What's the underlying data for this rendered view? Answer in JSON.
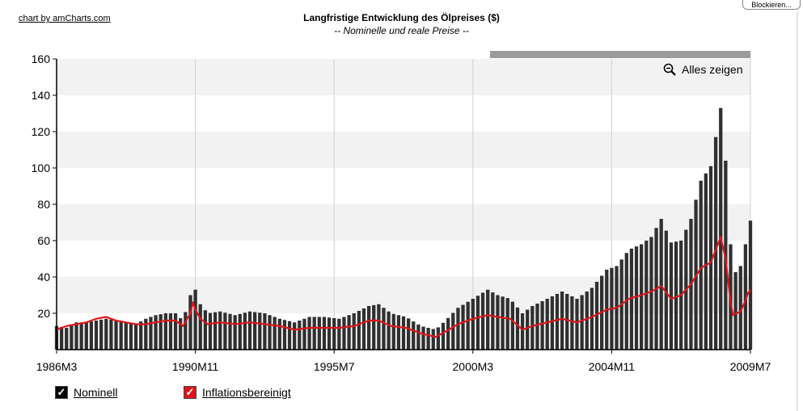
{
  "credit": "chart by amCharts.com",
  "block_button": "Blockieren...",
  "zoom_label": "Alles zeigen",
  "colors": {
    "nominal": "#303030",
    "real": "#e0141a",
    "band": "#f2f2f2",
    "scrollbar": "#9b9b9b"
  },
  "icons": {
    "zoom": "zoom-out-magnifier-icon",
    "check": "checkmark-icon"
  },
  "chart_data": {
    "type": "bar",
    "title": "Langfristige Entwicklung des Ölpreises ($)",
    "subtitle": "-- Nominelle und reale Preise --",
    "xlabel": "",
    "ylabel": "",
    "ylim": [
      0,
      160
    ],
    "yticks": [
      20,
      40,
      60,
      80,
      100,
      120,
      140,
      160
    ],
    "x_tick_labels": [
      "1986M3",
      "1990M11",
      "1995M7",
      "2000M3",
      "2004M11",
      "2009M7"
    ],
    "x_start": "1986M3",
    "x_end": "2009M7",
    "grid": true,
    "legend_position": "bottom-left",
    "series": [
      {
        "name": "Nominell",
        "render": "bar",
        "points": [
          [
            "1986M3",
            13
          ],
          [
            "1986M7",
            12
          ],
          [
            "1986M11",
            15
          ],
          [
            "1987M3",
            15
          ],
          [
            "1987M7",
            16
          ],
          [
            "1987M11",
            17
          ],
          [
            "1988M3",
            16
          ],
          [
            "1988M7",
            15
          ],
          [
            "1988M11",
            14
          ],
          [
            "1989M3",
            17
          ],
          [
            "1989M7",
            19
          ],
          [
            "1989M11",
            20
          ],
          [
            "1990M3",
            20
          ],
          [
            "1990M6",
            16
          ],
          [
            "1990M9",
            30
          ],
          [
            "1990M10",
            36
          ],
          [
            "1990M11",
            33
          ],
          [
            "1991M1",
            25
          ],
          [
            "1991M4",
            20
          ],
          [
            "1991M9",
            21
          ],
          [
            "1992M3",
            19
          ],
          [
            "1992M9",
            21
          ],
          [
            "1993M3",
            20
          ],
          [
            "1993M9",
            17
          ],
          [
            "1994M3",
            15
          ],
          [
            "1994M9",
            18
          ],
          [
            "1995M3",
            18
          ],
          [
            "1995M9",
            17
          ],
          [
            "1996M3",
            20
          ],
          [
            "1996M9",
            24
          ],
          [
            "1997M1",
            25
          ],
          [
            "1997M6",
            20
          ],
          [
            "1997M12",
            18
          ],
          [
            "1998M6",
            13
          ],
          [
            "1998M12",
            11
          ],
          [
            "1999M4",
            16
          ],
          [
            "1999M9",
            23
          ],
          [
            "2000M3",
            28
          ],
          [
            "2000M9",
            33
          ],
          [
            "2001M1",
            30
          ],
          [
            "2001M6",
            28
          ],
          [
            "2001M11",
            20
          ],
          [
            "2002M3",
            24
          ],
          [
            "2002M9",
            28
          ],
          [
            "2003M3",
            32
          ],
          [
            "2003M9",
            28
          ],
          [
            "2004M3",
            34
          ],
          [
            "2004M9",
            44
          ],
          [
            "2005M1",
            46
          ],
          [
            "2005M6",
            55
          ],
          [
            "2005M11",
            58
          ],
          [
            "2006M3",
            62
          ],
          [
            "2006M7",
            72
          ],
          [
            "2006M11",
            59
          ],
          [
            "2007M3",
            60
          ],
          [
            "2007M7",
            72
          ],
          [
            "2007M11",
            93
          ],
          [
            "2008M3",
            101
          ],
          [
            "2008M7",
            133
          ],
          [
            "2008M9",
            104
          ],
          [
            "2008M11",
            58
          ],
          [
            "2008M12",
            41
          ],
          [
            "2009M3",
            46
          ],
          [
            "2009M5",
            58
          ],
          [
            "2009M6",
            69
          ],
          [
            "2009M7",
            71
          ]
        ]
      },
      {
        "name": "Inflationsbereinigt",
        "render": "line",
        "points": [
          [
            "1986M3",
            11
          ],
          [
            "1986M7",
            13
          ],
          [
            "1986M11",
            14
          ],
          [
            "1987M3",
            15
          ],
          [
            "1987M7",
            17
          ],
          [
            "1987M11",
            18
          ],
          [
            "1988M3",
            16
          ],
          [
            "1988M7",
            15
          ],
          [
            "1988M11",
            14
          ],
          [
            "1989M3",
            14
          ],
          [
            "1989M7",
            15
          ],
          [
            "1989M11",
            16
          ],
          [
            "1990M3",
            16
          ],
          [
            "1990M6",
            13
          ],
          [
            "1990M9",
            20
          ],
          [
            "1990M10",
            26
          ],
          [
            "1990M11",
            22
          ],
          [
            "1991M1",
            17
          ],
          [
            "1991M4",
            14
          ],
          [
            "1991M9",
            15
          ],
          [
            "1992M3",
            14
          ],
          [
            "1992M9",
            15
          ],
          [
            "1993M3",
            14
          ],
          [
            "1993M9",
            13
          ],
          [
            "1994M3",
            11
          ],
          [
            "1994M9",
            12
          ],
          [
            "1995M3",
            12
          ],
          [
            "1995M9",
            12
          ],
          [
            "1996M3",
            13
          ],
          [
            "1996M9",
            16
          ],
          [
            "1997M1",
            16
          ],
          [
            "1997M6",
            13
          ],
          [
            "1997M12",
            12
          ],
          [
            "1998M6",
            9
          ],
          [
            "1998M12",
            7
          ],
          [
            "1999M4",
            10
          ],
          [
            "1999M9",
            14
          ],
          [
            "2000M3",
            17
          ],
          [
            "2000M9",
            19
          ],
          [
            "2001M1",
            18
          ],
          [
            "2001M6",
            17
          ],
          [
            "2001M11",
            11
          ],
          [
            "2002M3",
            13
          ],
          [
            "2002M9",
            15
          ],
          [
            "2003M3",
            17
          ],
          [
            "2003M9",
            15
          ],
          [
            "2004M3",
            18
          ],
          [
            "2004M9",
            22
          ],
          [
            "2005M1",
            23
          ],
          [
            "2005M6",
            28
          ],
          [
            "2005M11",
            30
          ],
          [
            "2006M3",
            32
          ],
          [
            "2006M7",
            35
          ],
          [
            "2006M11",
            28
          ],
          [
            "2007M3",
            30
          ],
          [
            "2007M7",
            36
          ],
          [
            "2007M11",
            45
          ],
          [
            "2008M3",
            48
          ],
          [
            "2008M7",
            62
          ],
          [
            "2008M9",
            50
          ],
          [
            "2008M11",
            26
          ],
          [
            "2008M12",
            19
          ],
          [
            "2009M3",
            21
          ],
          [
            "2009M5",
            27
          ],
          [
            "2009M6",
            31
          ],
          [
            "2009M7",
            33
          ]
        ]
      }
    ]
  }
}
